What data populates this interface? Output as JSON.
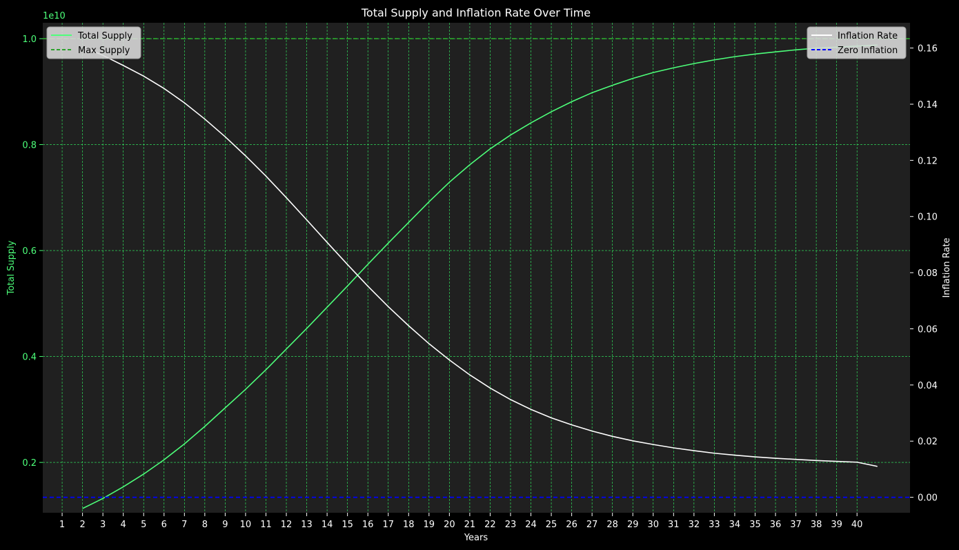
{
  "chart_data": {
    "type": "line",
    "title": "Total Supply and Inflation Rate Over Time",
    "xlabel": "Years",
    "ylabel_left": "Total Supply",
    "ylabel_right": "Inflation Rate",
    "left_offset_label": "1e10",
    "x_ticks": [
      1,
      2,
      3,
      4,
      5,
      6,
      7,
      8,
      9,
      10,
      11,
      12,
      13,
      14,
      15,
      16,
      17,
      18,
      19,
      20,
      21,
      22,
      23,
      24,
      25,
      26,
      27,
      28,
      29,
      30,
      31,
      32,
      33,
      34,
      35,
      36,
      37,
      38,
      39,
      40
    ],
    "left_ticks": [
      "0.2",
      "0.4",
      "0.6",
      "0.8",
      "1.0"
    ],
    "right_ticks": [
      "0.00",
      "0.02",
      "0.04",
      "0.06",
      "0.08",
      "0.10",
      "0.12",
      "0.14",
      "0.16"
    ],
    "xlim": [
      0.05,
      42.6
    ],
    "ylim_left": [
      1.05,
      10.3
    ],
    "ylim_right": [
      -0.0055,
      0.169
    ],
    "grid": true,
    "colors": {
      "total_supply": "#4dff7a",
      "max_supply": "#2ca02c",
      "inflation": "#ffffff",
      "zero_inflation": "#0000ff",
      "grid": "#33ff66",
      "plot_bg": "#202020",
      "figure_bg": "#000000",
      "left_axis_text": "#4dff7a",
      "right_axis_text": "#ffffff"
    },
    "legend_left": {
      "placement": "upper-left",
      "entries": [
        "Total Supply",
        "Max Supply"
      ]
    },
    "legend_right": {
      "placement": "upper-right",
      "entries": [
        "Inflation Rate",
        "Zero Inflation"
      ]
    },
    "series": [
      {
        "name": "Total Supply",
        "axis": "left",
        "style": "solid",
        "x": [
          2,
          3,
          4,
          5,
          6,
          7,
          8,
          9,
          10,
          11,
          12,
          13,
          14,
          15,
          16,
          17,
          18,
          19,
          20,
          21,
          22,
          23,
          24,
          25,
          26,
          27,
          28,
          29,
          30,
          31,
          32,
          33,
          34,
          35,
          36,
          37,
          38,
          39,
          40,
          41
        ],
        "y": [
          1.13,
          1.32,
          1.54,
          1.78,
          2.05,
          2.35,
          2.68,
          3.03,
          3.38,
          3.75,
          4.14,
          4.53,
          4.93,
          5.33,
          5.74,
          6.14,
          6.53,
          6.92,
          7.29,
          7.62,
          7.92,
          8.18,
          8.41,
          8.62,
          8.81,
          8.98,
          9.12,
          9.25,
          9.36,
          9.45,
          9.53,
          9.6,
          9.66,
          9.71,
          9.75,
          9.79,
          9.82,
          9.84,
          9.86,
          9.88
        ]
      },
      {
        "name": "Max Supply",
        "axis": "left",
        "style": "dashed",
        "y_const": 10.0
      },
      {
        "name": "Inflation Rate",
        "axis": "right",
        "style": "solid",
        "x": [
          2,
          3,
          4,
          5,
          6,
          7,
          8,
          9,
          10,
          11,
          12,
          13,
          14,
          15,
          16,
          17,
          18,
          19,
          20,
          21,
          22,
          23,
          24,
          25,
          26,
          27,
          28,
          29,
          30,
          31,
          32,
          33,
          34,
          35,
          36,
          37,
          38,
          39,
          40,
          41
        ],
        "y": [
          0.1605,
          0.1574,
          0.1538,
          0.15,
          0.1456,
          0.1405,
          0.1347,
          0.1284,
          0.1216,
          0.1144,
          0.1067,
          0.0988,
          0.0908,
          0.0829,
          0.0752,
          0.0679,
          0.0611,
          0.0547,
          0.0489,
          0.0436,
          0.0389,
          0.0348,
          0.0313,
          0.0283,
          0.0258,
          0.0236,
          0.0217,
          0.0201,
          0.0188,
          0.0176,
          0.0166,
          0.0157,
          0.015,
          0.0144,
          0.0139,
          0.0135,
          0.0131,
          0.0128,
          0.0125,
          0.011
        ]
      },
      {
        "name": "Zero Inflation",
        "axis": "right",
        "style": "dashed",
        "y_const": 0.0
      }
    ]
  }
}
